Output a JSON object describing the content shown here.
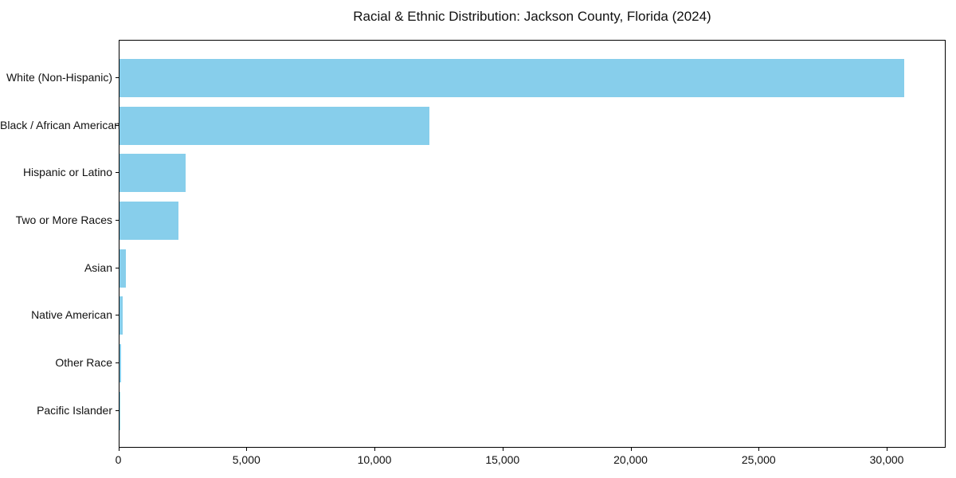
{
  "chart_data": {
    "type": "bar",
    "orientation": "horizontal",
    "title": "Racial & Ethnic Distribution: Jackson County, Florida (2024)",
    "categories": [
      "White (Non-Hispanic)",
      "Black / African American",
      "Hispanic or Latino",
      "Two or More Races",
      "Asian",
      "Native American",
      "Other Race",
      "Pacific Islander"
    ],
    "values": [
      30700,
      12150,
      2590,
      2330,
      270,
      130,
      80,
      30
    ],
    "xlabel": "",
    "ylabel": "",
    "xlim": [
      0,
      32300
    ],
    "xticks": [
      0,
      5000,
      10000,
      15000,
      20000,
      25000,
      30000
    ],
    "xtick_labels": [
      "0",
      "5,000",
      "10,000",
      "15,000",
      "20,000",
      "25,000",
      "30,000"
    ],
    "bar_color": "#87CEEB",
    "grid": false,
    "legend": "none",
    "background_color": "#ffffff",
    "text_color": "#111111"
  }
}
